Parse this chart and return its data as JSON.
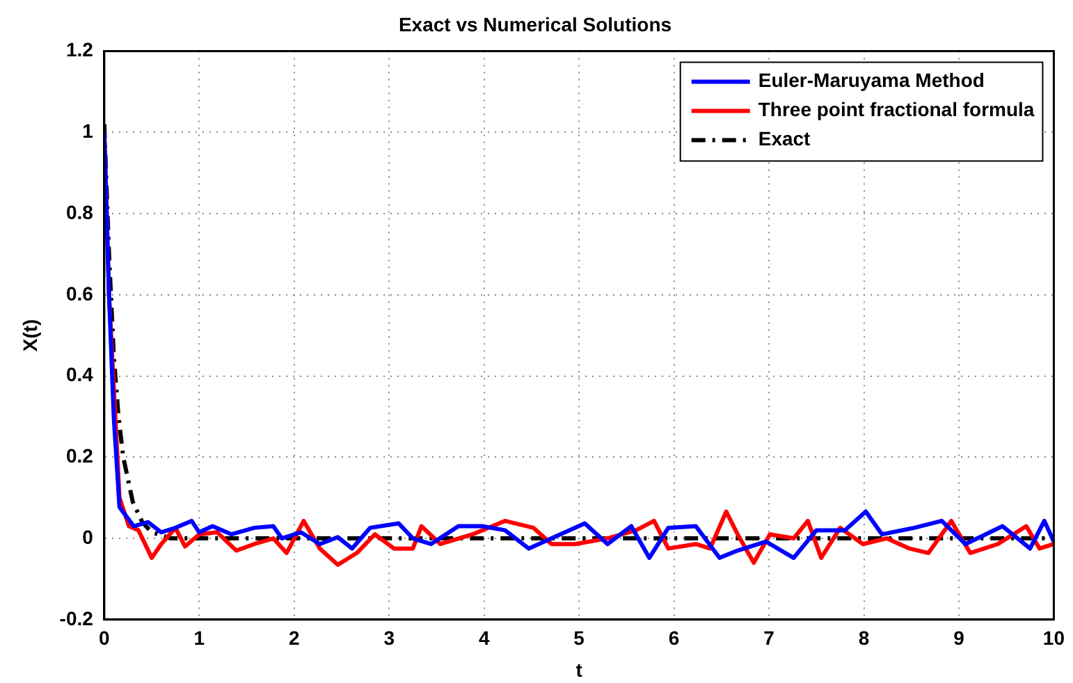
{
  "chart_data": {
    "type": "line",
    "title": "Exact vs Numerical Solutions",
    "xlabel": "t",
    "ylabel": "X(t)",
    "xlim": [
      0,
      10
    ],
    "ylim": [
      -0.2,
      1.2
    ],
    "xticks": [
      0,
      1,
      2,
      3,
      4,
      5,
      6,
      7,
      8,
      9,
      10
    ],
    "yticks": [
      -0.2,
      0,
      0.2,
      0.4,
      0.6,
      0.8,
      1,
      1.2
    ],
    "grid": true,
    "legend": "top right",
    "marker": "none",
    "series": [
      {
        "name": "Euler-Maruyama Method",
        "color": "#0000ff",
        "line_style": "solid",
        "x": [
          0,
          0.05,
          0.1,
          0.16,
          0.31,
          0.46,
          0.6,
          0.75,
          0.92,
          1.0,
          1.14,
          1.34,
          1.58,
          1.78,
          1.87,
          2.07,
          2.27,
          2.46,
          2.61,
          2.8,
          3.1,
          3.25,
          3.44,
          3.73,
          3.98,
          4.22,
          4.47,
          4.71,
          5.06,
          5.3,
          5.55,
          5.74,
          5.94,
          6.23,
          6.48,
          6.67,
          6.97,
          7.26,
          7.5,
          7.8,
          8.02,
          8.19,
          8.53,
          8.82,
          9.07,
          9.46,
          9.75,
          9.9,
          10
        ],
        "values": [
          1,
          0.6,
          0.3,
          0.077,
          0.03,
          0.04,
          0.015,
          0.026,
          0.043,
          0.015,
          0.03,
          0.01,
          0.026,
          0.03,
          0,
          0.015,
          -0.014,
          0.003,
          -0.025,
          0.026,
          0.037,
          0,
          -0.014,
          0.03,
          0.03,
          0.02,
          -0.025,
          0,
          0.037,
          -0.014,
          0.03,
          -0.048,
          0.026,
          0.03,
          -0.048,
          -0.03,
          -0.008,
          -0.048,
          0.02,
          0.02,
          0.066,
          0.01,
          0.026,
          0.043,
          -0.014,
          0.03,
          -0.025,
          0.043,
          -0.008
        ]
      },
      {
        "name": "Three point fractional formula",
        "color": "#ff0000",
        "line_style": "solid",
        "x": [
          0,
          0.05,
          0.16,
          0.26,
          0.36,
          0.5,
          0.6,
          0.75,
          0.85,
          1,
          1.19,
          1.39,
          1.58,
          1.78,
          1.92,
          2.1,
          2.27,
          2.46,
          2.66,
          2.85,
          3.05,
          3.25,
          3.34,
          3.54,
          3.88,
          4.22,
          4.52,
          4.71,
          4.96,
          5.3,
          5.6,
          5.79,
          5.94,
          6.23,
          6.38,
          6.55,
          6.67,
          6.84,
          7.01,
          7.26,
          7.41,
          7.55,
          7.75,
          7.99,
          8.24,
          8.48,
          8.68,
          8.92,
          9.12,
          9.41,
          9.71,
          9.85,
          10
        ],
        "values": [
          1,
          0.6,
          0.1,
          0.03,
          0.02,
          -0.048,
          -0.014,
          0.026,
          -0.02,
          0.01,
          0.015,
          -0.03,
          -0.014,
          0,
          -0.036,
          0.043,
          -0.025,
          -0.065,
          -0.036,
          0.01,
          -0.025,
          -0.025,
          0.03,
          -0.014,
          0.01,
          0.043,
          0.026,
          -0.014,
          -0.014,
          0,
          0.02,
          0.043,
          -0.025,
          -0.014,
          -0.025,
          0.066,
          0.01,
          -0.06,
          0.01,
          0,
          0.043,
          -0.048,
          0.026,
          -0.014,
          0,
          -0.025,
          -0.036,
          0.043,
          -0.036,
          -0.014,
          0.03,
          -0.025,
          -0.014
        ]
      },
      {
        "name": "Exact",
        "color": "#000000",
        "line_style": "dashed",
        "x": [
          0,
          0.05,
          0.1,
          0.15,
          0.2,
          0.3,
          0.4,
          0.5,
          0.7,
          1,
          10
        ],
        "values": [
          1.02,
          0.7,
          0.45,
          0.3,
          0.2,
          0.09,
          0.04,
          0.015,
          0,
          0,
          0
        ]
      }
    ]
  }
}
